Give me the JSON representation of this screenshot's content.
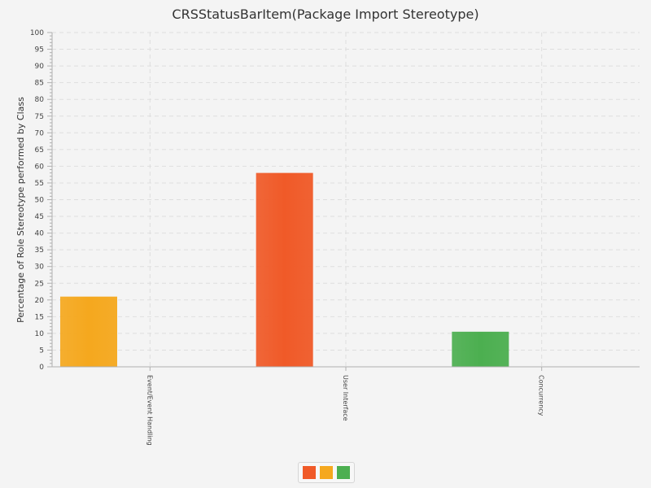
{
  "chart_data": {
    "type": "bar",
    "title": "CRSStatusBarItem(Package Import Stereotype)",
    "xlabel": "",
    "ylabel": "Percentage of Role Stereotype performed by Class",
    "ylim": [
      0,
      100
    ],
    "yticks": [
      0,
      5,
      10,
      15,
      20,
      25,
      30,
      35,
      40,
      45,
      50,
      55,
      60,
      65,
      70,
      75,
      80,
      85,
      90,
      95,
      100
    ],
    "categories": [
      "Event/Event Handling",
      "User Interface",
      "Concurrency"
    ],
    "series": [
      {
        "color": "#f05a28",
        "values": [
          0,
          58,
          0
        ]
      },
      {
        "color": "#f5a81e",
        "values": [
          21,
          0,
          0
        ]
      },
      {
        "color": "#4caf50",
        "values": [
          0,
          0,
          10.5
        ]
      }
    ],
    "grid": true,
    "legend": "bottom"
  }
}
